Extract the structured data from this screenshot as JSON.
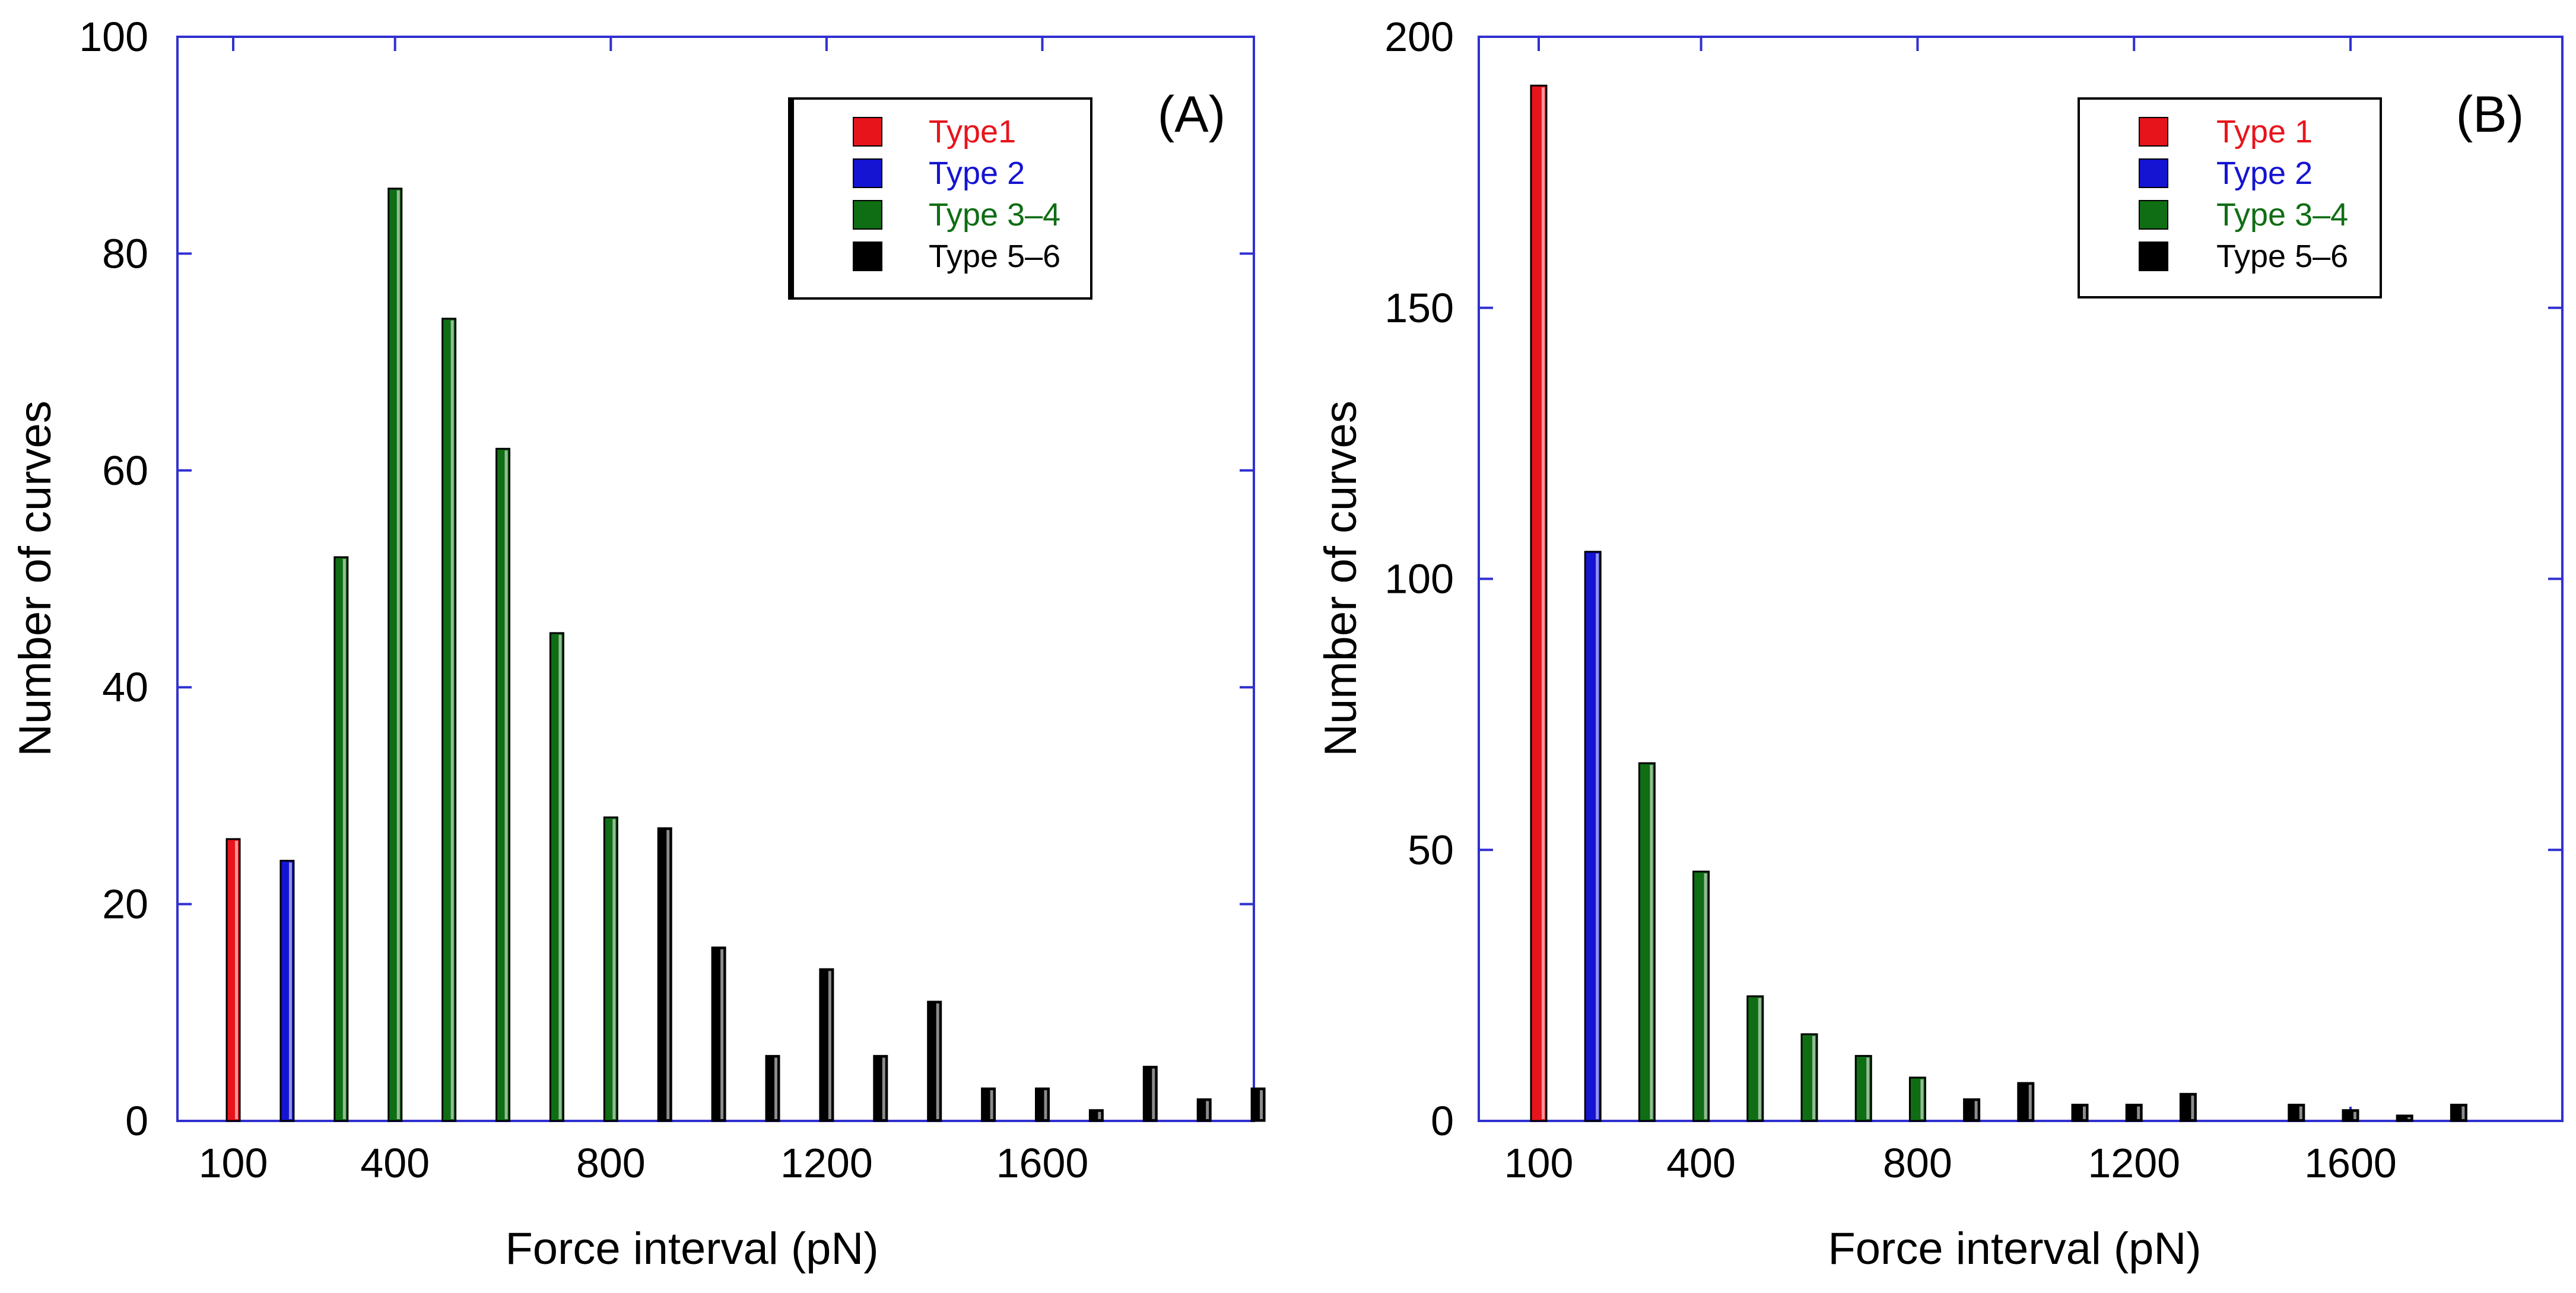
{
  "colors": {
    "type1": "#e8141c",
    "type2": "#1414d2",
    "type34": "#0f6d14",
    "type56": "#000000",
    "axis": "#3030d0"
  },
  "chart_data": [
    {
      "type": "bar",
      "panel_label": "(A)",
      "xlabel": "Force interval (pN)",
      "ylabel": "Number of curves",
      "xlim": [
        0,
        2000
      ],
      "ylim": [
        0,
        100
      ],
      "xticks": [
        100,
        400,
        800,
        1200,
        1600
      ],
      "yticks": [
        0,
        20,
        40,
        60,
        80,
        100
      ],
      "legend": [
        {
          "label": "Type1",
          "color_key": "type1"
        },
        {
          "label": "Type 2",
          "color_key": "type2"
        },
        {
          "label": "Type 3–4",
          "color_key": "type34"
        },
        {
          "label": "Type 5–6",
          "color_key": "type56"
        }
      ],
      "legend_position": "top-right",
      "x": [
        100,
        200,
        300,
        400,
        500,
        600,
        700,
        800,
        900,
        1000,
        1100,
        1200,
        1300,
        1400,
        1500,
        1600,
        1700,
        1800,
        1900,
        2000
      ],
      "series": [
        {
          "name": "Type1",
          "color_key": "type1",
          "values": [
            26,
            0,
            0,
            0,
            0,
            0,
            0,
            0,
            0,
            0,
            0,
            0,
            0,
            0,
            0,
            0,
            0,
            0,
            0,
            0
          ]
        },
        {
          "name": "Type 2",
          "color_key": "type2",
          "values": [
            0,
            24,
            0,
            0,
            0,
            0,
            0,
            0,
            0,
            0,
            0,
            0,
            0,
            0,
            0,
            0,
            0,
            0,
            0,
            0
          ]
        },
        {
          "name": "Type 3–4",
          "color_key": "type34",
          "values": [
            0,
            0,
            52,
            86,
            74,
            62,
            45,
            28,
            0,
            0,
            0,
            0,
            0,
            0,
            0,
            0,
            0,
            0,
            0,
            0
          ]
        },
        {
          "name": "Type 5–6",
          "color_key": "type56",
          "values": [
            0,
            0,
            0,
            0,
            0,
            0,
            0,
            0,
            27,
            16,
            6,
            14,
            6,
            11,
            3,
            3,
            1,
            5,
            2,
            3
          ]
        }
      ]
    },
    {
      "type": "bar",
      "panel_label": "(B)",
      "xlabel": "Force interval (pN)",
      "ylabel": "Number of curves",
      "xlim": [
        0,
        2000
      ],
      "ylim": [
        0,
        200
      ],
      "xticks": [
        100,
        400,
        800,
        1200,
        1600
      ],
      "yticks": [
        0,
        50,
        100,
        150,
        200
      ],
      "legend": [
        {
          "label": "Type 1",
          "color_key": "type1"
        },
        {
          "label": "Type 2",
          "color_key": "type2"
        },
        {
          "label": "Type 3–4",
          "color_key": "type34"
        },
        {
          "label": "Type 5–6",
          "color_key": "type56"
        }
      ],
      "legend_position": "top-right",
      "x": [
        100,
        200,
        300,
        400,
        500,
        600,
        700,
        800,
        900,
        1000,
        1100,
        1200,
        1300,
        1400,
        1500,
        1600,
        1700,
        1800,
        1900
      ],
      "series": [
        {
          "name": "Type 1",
          "color_key": "type1",
          "values": [
            191,
            0,
            0,
            0,
            0,
            0,
            0,
            0,
            0,
            0,
            0,
            0,
            0,
            0,
            0,
            0,
            0,
            0,
            0
          ]
        },
        {
          "name": "Type 2",
          "color_key": "type2",
          "values": [
            0,
            105,
            0,
            0,
            0,
            0,
            0,
            0,
            0,
            0,
            0,
            0,
            0,
            0,
            0,
            0,
            0,
            0,
            0
          ]
        },
        {
          "name": "Type 3–4",
          "color_key": "type34",
          "values": [
            0,
            0,
            66,
            46,
            23,
            16,
            12,
            8,
            0,
            0,
            0,
            0,
            0,
            0,
            0,
            0,
            0,
            0,
            0
          ]
        },
        {
          "name": "Type 5–6",
          "color_key": "type56",
          "values": [
            0,
            0,
            0,
            0,
            0,
            0,
            0,
            0,
            4,
            7,
            3,
            3,
            5,
            0,
            3,
            2,
            1,
            3,
            0
          ]
        }
      ]
    }
  ]
}
